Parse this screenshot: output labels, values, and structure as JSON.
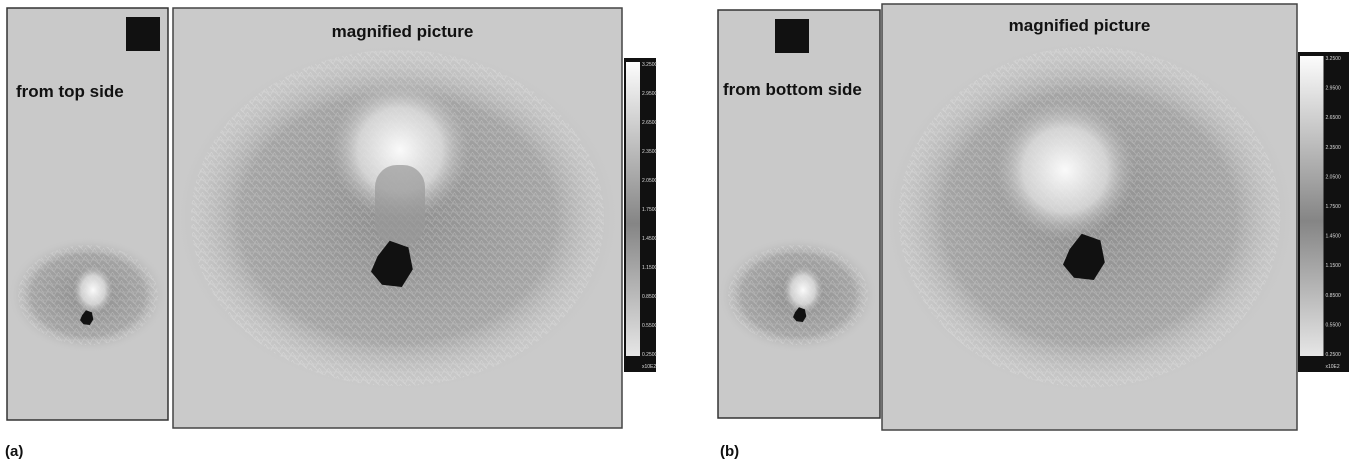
{
  "panel_a": {
    "label": "(a)",
    "side_view": {
      "caption": "from top side"
    },
    "magnified": {
      "caption": "magnified picture"
    },
    "colorbar": {
      "ticks": [
        "3.2500",
        "2.9500",
        "2.6500",
        "2.3500",
        "2.0500",
        "1.7500",
        "1.4500",
        "1.1500",
        "0.8500",
        "0.5500",
        "0.2500"
      ],
      "unit": "x10E2"
    }
  },
  "panel_b": {
    "label": "(b)",
    "side_view": {
      "caption": "from bottom side"
    },
    "magnified": {
      "caption": "magnified picture"
    },
    "colorbar": {
      "ticks": [
        "3.2500",
        "2.9500",
        "2.6500",
        "2.3500",
        "2.0500",
        "1.7500",
        "1.4500",
        "1.1500",
        "0.8500",
        "0.5500",
        "0.2500"
      ],
      "unit": "x10E2"
    }
  }
}
